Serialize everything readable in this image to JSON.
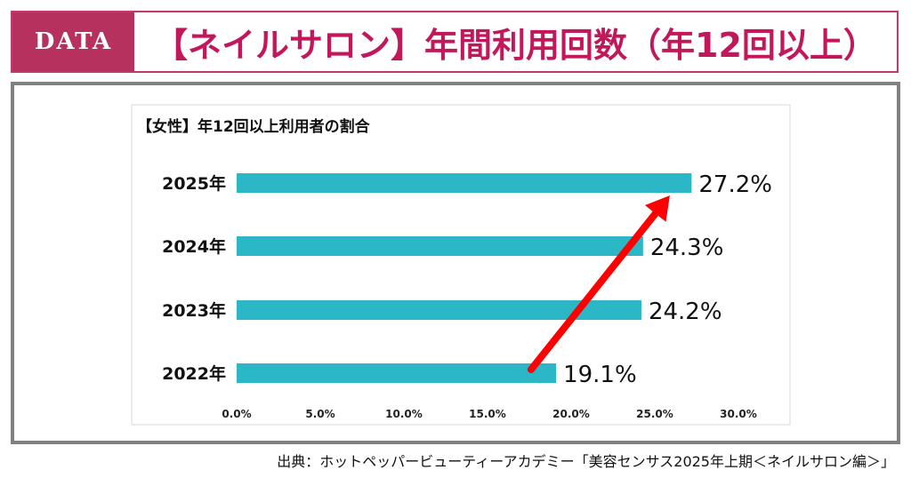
{
  "header": {
    "badge": "DATA",
    "title": "【ネイルサロン】年間利用回数（年12回以上）"
  },
  "source": "出典：ホットペッパービューティーアカデミー「美容センサス2025年上期＜ネイルサロン編＞」",
  "colors": {
    "bar": "#2bb7c6",
    "arrow": "#ff0000",
    "title": "#c2185b",
    "badge": "#b7315f"
  },
  "chart_data": {
    "type": "bar",
    "orientation": "horizontal",
    "title": "【女性】年12回以上利用者の割合",
    "categories": [
      "2025年",
      "2024年",
      "2023年",
      "2022年"
    ],
    "values": [
      27.2,
      24.3,
      24.2,
      19.1
    ],
    "value_labels": [
      "27.2%",
      "24.3%",
      "24.2%",
      "19.1%"
    ],
    "xlim": [
      0,
      30
    ],
    "xticks": [
      0,
      5,
      10,
      15,
      20,
      25,
      30
    ],
    "xtick_labels": [
      "0.0%",
      "5.0%",
      "10.0%",
      "15.0%",
      "20.0%",
      "25.0%",
      "30.0%"
    ],
    "grid": false,
    "legend": "none",
    "annotation": "red arrow from 2022 bar end rising to 2025 bar end"
  }
}
